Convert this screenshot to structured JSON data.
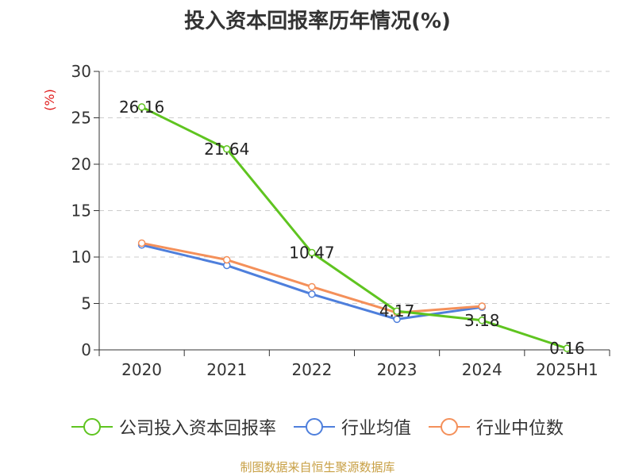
{
  "title": "投入资本回报率历年情况(%)",
  "source": "制图数据来自恒生聚源数据库",
  "colors": {
    "series_roic": "#5fc420",
    "series_avg": "#4e7fdc",
    "series_median": "#f4905a",
    "axis": "#333333",
    "grid": "#cccccc",
    "ylabel": "#e01a1a",
    "source": "#c8a045"
  },
  "chart_data": {
    "type": "line",
    "title": "投入资本回报率历年情况(%)",
    "xlabel": "",
    "ylabel": "(%)",
    "categories": [
      "2020",
      "2021",
      "2022",
      "2023",
      "2024",
      "2025H1"
    ],
    "ylim": [
      0,
      30
    ],
    "yticks": [
      0,
      5,
      10,
      15,
      20,
      25,
      30
    ],
    "grid": true,
    "legend_position": "bottom",
    "series": [
      {
        "name": "公司投入资本回报率",
        "color": "#5fc420",
        "values": [
          26.16,
          21.64,
          10.47,
          4.17,
          3.18,
          0.16
        ],
        "labels": [
          "26.16",
          "21.64",
          "10.47",
          "4.17",
          "3.18",
          "0.16"
        ]
      },
      {
        "name": "行业均值",
        "color": "#4e7fdc",
        "values": [
          11.3,
          9.1,
          6.0,
          3.3,
          4.6,
          null
        ]
      },
      {
        "name": "行业中位数",
        "color": "#f4905a",
        "values": [
          11.5,
          9.7,
          6.8,
          4.0,
          4.7,
          null
        ]
      }
    ]
  }
}
